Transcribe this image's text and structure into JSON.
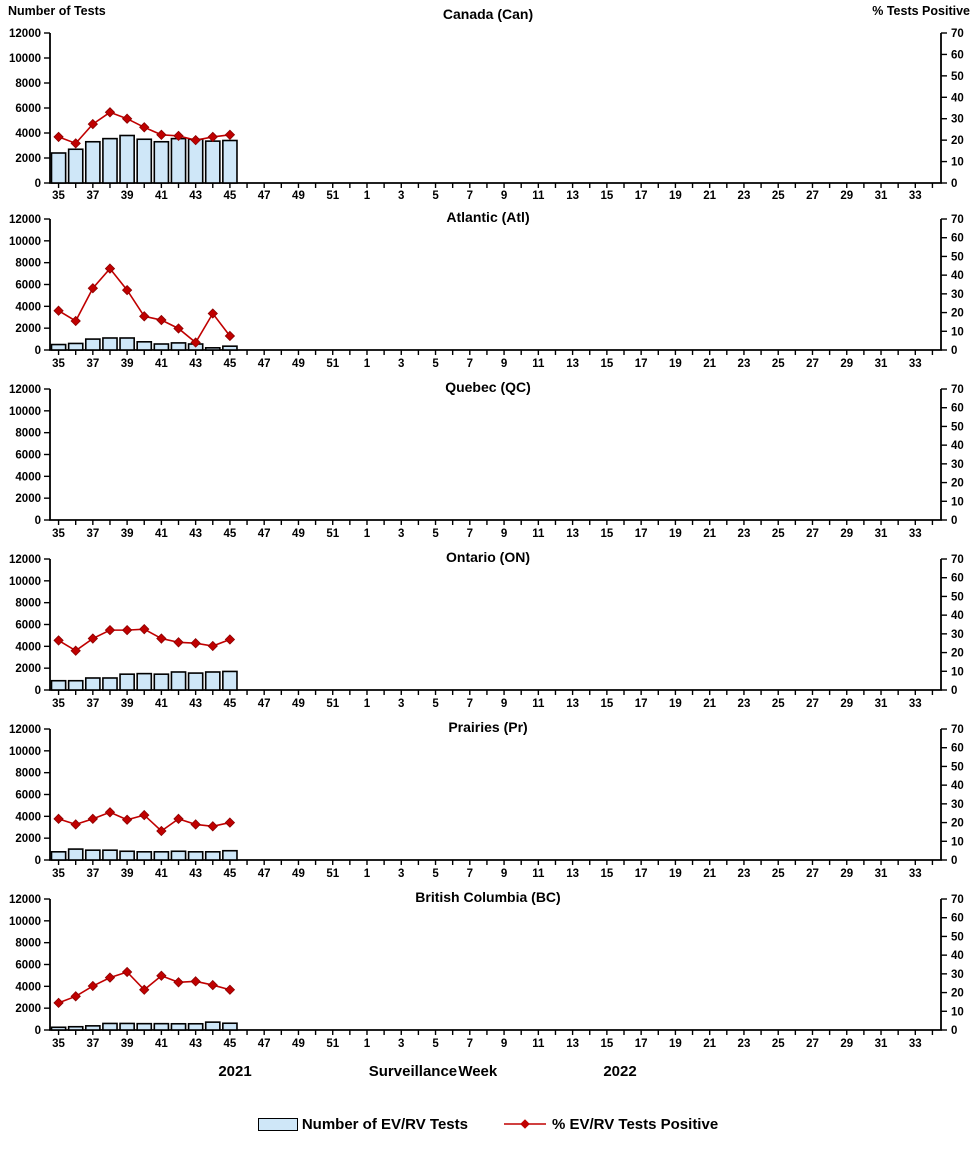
{
  "page": {
    "left_axis_label": "Number of Tests",
    "right_axis_label": "%  Tests Positive",
    "xlabel": "Surveillance Week",
    "year_left": "2021",
    "year_right": "2022"
  },
  "legend": {
    "bar_label": "Number of EV/RV Tests",
    "line_label": "% EV/RV Tests Positive"
  },
  "colors": {
    "bar_fill": "#cfe7f8",
    "bar_stroke": "#000000",
    "line": "#c00000",
    "axis": "#000000",
    "text": "#000000"
  },
  "axes": {
    "weeks": [
      35,
      36,
      37,
      38,
      39,
      40,
      41,
      42,
      43,
      44,
      45,
      46,
      47,
      48,
      49,
      50,
      51,
      52,
      1,
      2,
      3,
      4,
      5,
      6,
      7,
      8,
      9,
      10,
      11,
      12,
      13,
      14,
      15,
      16,
      17,
      18,
      19,
      20,
      21,
      22,
      23,
      24,
      25,
      26,
      27,
      28,
      29,
      30,
      31,
      32,
      33,
      34
    ],
    "left_ticks": [
      0,
      2000,
      4000,
      6000,
      8000,
      10000,
      12000
    ],
    "right_ticks": [
      0,
      10,
      20,
      30,
      40,
      50,
      60,
      70
    ],
    "left_ylim": [
      0,
      12000
    ],
    "right_ylim": [
      0,
      70
    ],
    "label_only_odd_weeks": true
  },
  "chart_data": [
    {
      "type": "bar+line",
      "title": "Canada (Can)",
      "x_weeks": [
        35,
        36,
        37,
        38,
        39,
        40,
        41,
        42,
        43,
        44,
        45
      ],
      "tests": [
        2400,
        2700,
        3300,
        3550,
        3800,
        3500,
        3300,
        3550,
        3500,
        3350,
        3400
      ],
      "pct_positive": [
        21.5,
        18.5,
        27.5,
        33,
        30,
        26,
        22.5,
        22,
        20,
        21.5,
        22.5
      ]
    },
    {
      "type": "bar+line",
      "title": "Atlantic (Atl)",
      "x_weeks": [
        35,
        36,
        37,
        38,
        39,
        40,
        41,
        42,
        43,
        44,
        45
      ],
      "tests": [
        500,
        600,
        1000,
        1100,
        1100,
        750,
        550,
        650,
        550,
        200,
        350
      ],
      "pct_positive": [
        21,
        15.5,
        33,
        43.5,
        32,
        18,
        16,
        11.5,
        4,
        19.5,
        7.5
      ]
    },
    {
      "type": "bar+line",
      "title": "Quebec (QC)",
      "x_weeks": [],
      "tests": [],
      "pct_positive": []
    },
    {
      "type": "bar+line",
      "title": "Ontario (ON)",
      "x_weeks": [
        35,
        36,
        37,
        38,
        39,
        40,
        41,
        42,
        43,
        44,
        45
      ],
      "tests": [
        850,
        850,
        1100,
        1100,
        1450,
        1500,
        1450,
        1650,
        1550,
        1650,
        1700
      ],
      "pct_positive": [
        26.5,
        21,
        27.5,
        32,
        32,
        32.5,
        27.5,
        25.5,
        25,
        23.5,
        27
      ]
    },
    {
      "type": "bar+line",
      "title": "Prairies (Pr)",
      "x_weeks": [
        35,
        36,
        37,
        38,
        39,
        40,
        41,
        42,
        43,
        44,
        45
      ],
      "tests": [
        750,
        1000,
        900,
        900,
        800,
        750,
        750,
        800,
        750,
        750,
        850
      ],
      "pct_positive": [
        22,
        19,
        22,
        25.5,
        21.5,
        24,
        15.5,
        22,
        19,
        18,
        20
      ]
    },
    {
      "type": "bar+line",
      "title": "British Columbia (BC)",
      "x_weeks": [
        35,
        36,
        37,
        38,
        39,
        40,
        41,
        42,
        43,
        44,
        45
      ],
      "tests": [
        250,
        300,
        380,
        600,
        600,
        580,
        580,
        570,
        570,
        720,
        620
      ],
      "pct_positive": [
        14.5,
        18,
        23.5,
        28,
        31,
        21.5,
        29,
        25.5,
        26,
        24,
        21.5
      ]
    }
  ]
}
